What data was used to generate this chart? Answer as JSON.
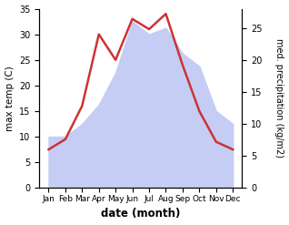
{
  "months": [
    "Jan",
    "Feb",
    "Mar",
    "Apr",
    "May",
    "Jun",
    "Jul",
    "Aug",
    "Sep",
    "Oct",
    "Nov",
    "Dec"
  ],
  "temp": [
    7.5,
    9.5,
    16,
    30,
    25,
    33,
    31,
    34,
    24,
    15,
    9,
    7.5
  ],
  "precip": [
    8,
    8,
    10,
    13,
    18,
    26,
    24,
    25,
    21,
    19,
    12,
    10
  ],
  "temp_color": "#cc3333",
  "precip_fill_color": "#c5cdf5",
  "temp_ylim": [
    0,
    35
  ],
  "precip_ylim": [
    0,
    28
  ],
  "temp_yticks": [
    0,
    5,
    10,
    15,
    20,
    25,
    30,
    35
  ],
  "precip_yticks": [
    0,
    5,
    10,
    15,
    20,
    25
  ],
  "ylabel_left": "max temp (C)",
  "ylabel_right": "med. precipitation (kg/m2)",
  "xlabel": "date (month)",
  "background_color": "#ffffff",
  "line_width": 1.8
}
